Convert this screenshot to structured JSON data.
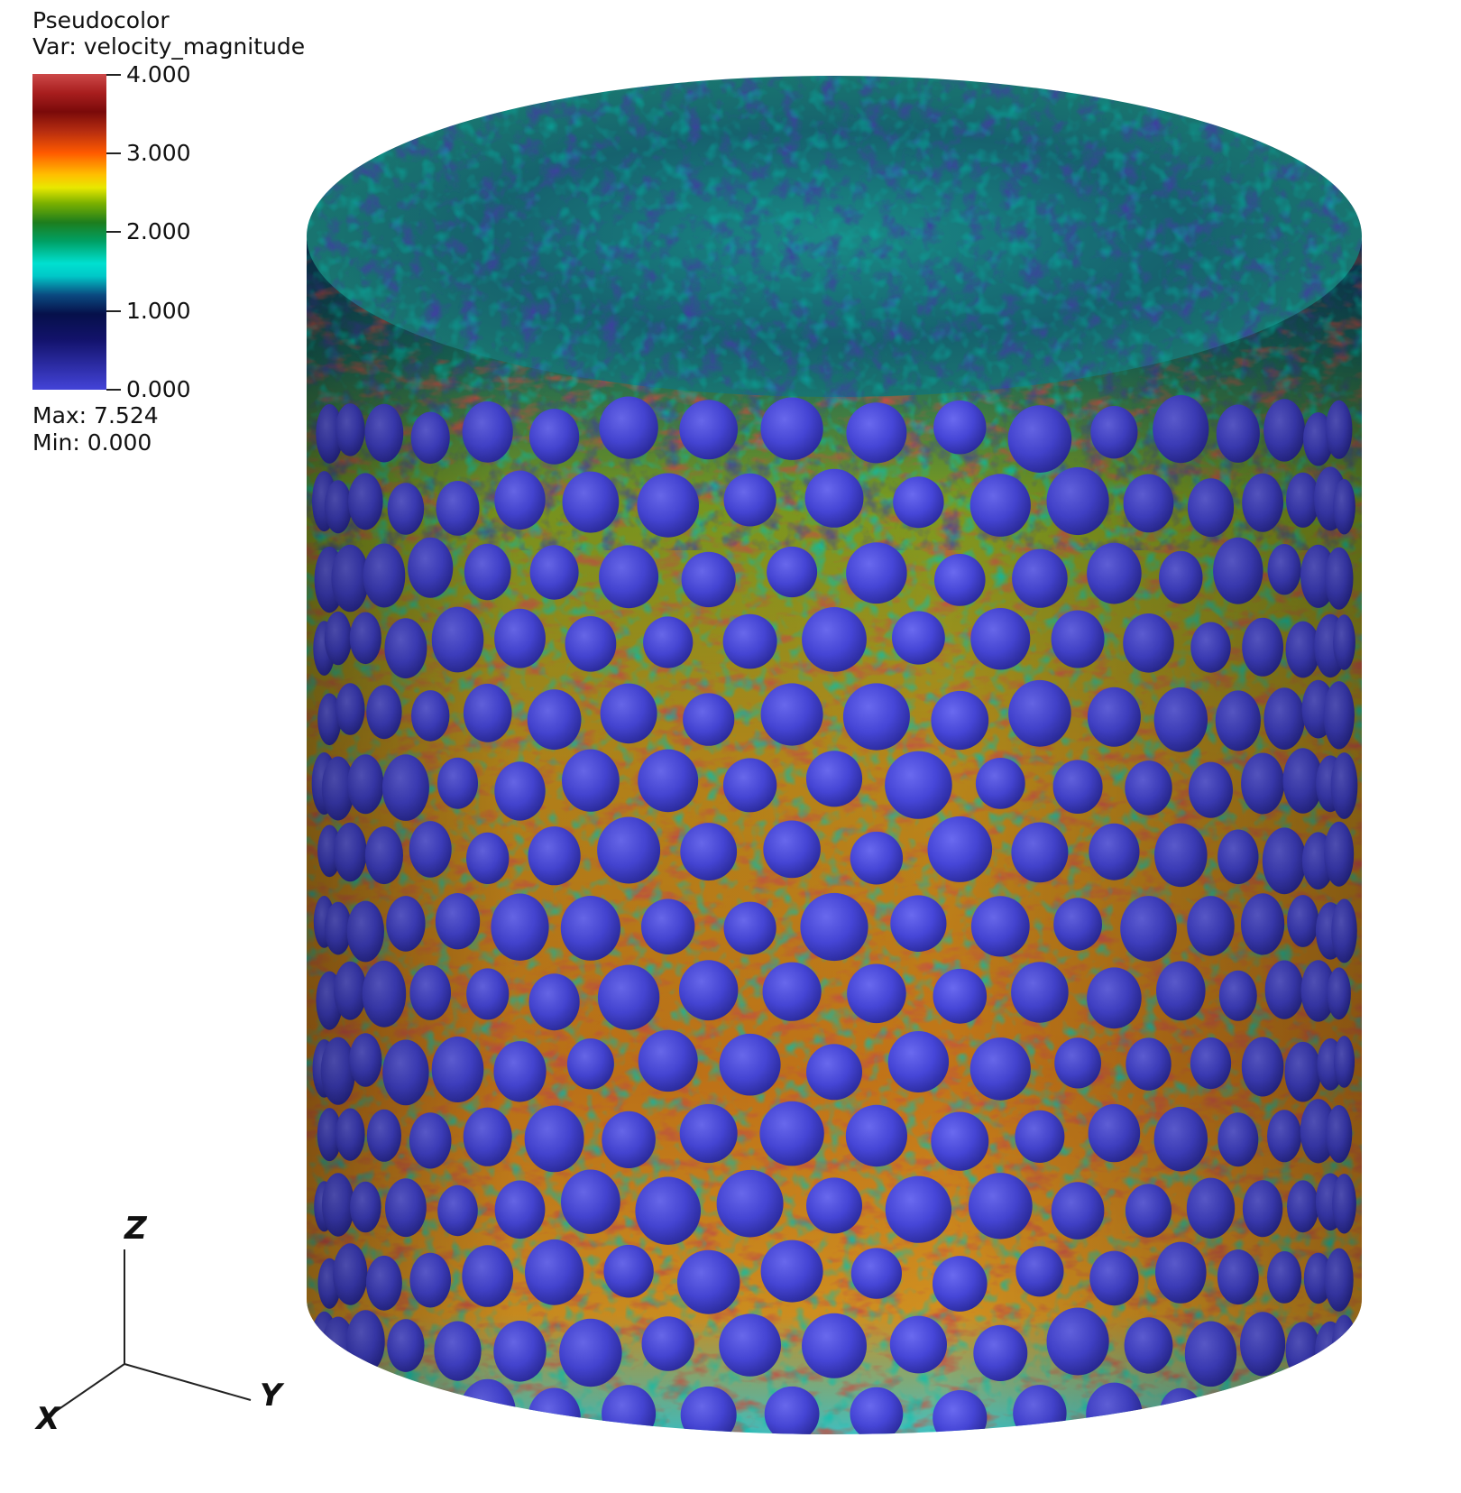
{
  "legend": {
    "plot_type": "Pseudocolor",
    "variable_line": "Var: velocity_magnitude",
    "ticks": [
      "4.000",
      "3.000",
      "2.000",
      "1.000",
      "0.000"
    ],
    "max_line": "Max:  7.524",
    "min_line": "Min:  0.000"
  },
  "axes_triad": {
    "z": "Z",
    "x": "X",
    "y": "Y"
  },
  "colors": {
    "particle": "#4646d8",
    "particle_highlight": "#6a6aee",
    "particle_shadow": "#2e2ea8",
    "low_velocity": "#12126a",
    "mid_velocity": "#00b0a0",
    "high_velocity": "#a01818"
  },
  "scene": {
    "subject": "cylinder-packed-bed"
  }
}
